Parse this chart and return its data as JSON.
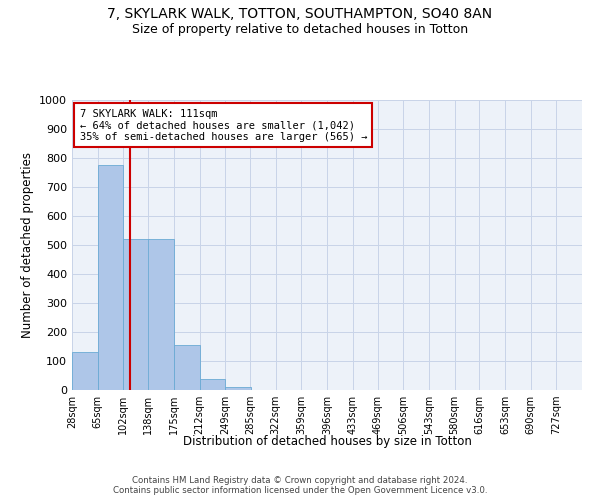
{
  "title": "7, SKYLARK WALK, TOTTON, SOUTHAMPTON, SO40 8AN",
  "subtitle": "Size of property relative to detached houses in Totton",
  "xlabel": "Distribution of detached houses by size in Totton",
  "ylabel": "Number of detached properties",
  "bar_values": [
    130,
    775,
    520,
    520,
    155,
    37,
    12,
    0,
    0,
    0,
    0,
    0,
    0,
    0,
    0,
    0,
    0,
    0,
    0,
    0
  ],
  "bin_edges": [
    28,
    65,
    102,
    138,
    175,
    212,
    249,
    285,
    322,
    359,
    396,
    433,
    469,
    506,
    543,
    580,
    616,
    653,
    690,
    727,
    764
  ],
  "bar_color": "#aec6e8",
  "bar_edge_color": "#6aaad4",
  "grid_color": "#c8d4e8",
  "vline_x": 111,
  "vline_color": "#cc0000",
  "ylim": [
    0,
    1000
  ],
  "yticks": [
    0,
    100,
    200,
    300,
    400,
    500,
    600,
    700,
    800,
    900,
    1000
  ],
  "annotation_line1": "7 SKYLARK WALK: 111sqm",
  "annotation_line2": "← 64% of detached houses are smaller (1,042)",
  "annotation_line3": "35% of semi-detached houses are larger (565) →",
  "annotation_box_color": "#ffffff",
  "annotation_border_color": "#cc0000",
  "footer_text": "Contains HM Land Registry data © Crown copyright and database right 2024.\nContains public sector information licensed under the Open Government Licence v3.0.",
  "background_color": "#edf2f9",
  "title_fontsize": 10,
  "subtitle_fontsize": 9,
  "annotation_fontsize": 7.5
}
